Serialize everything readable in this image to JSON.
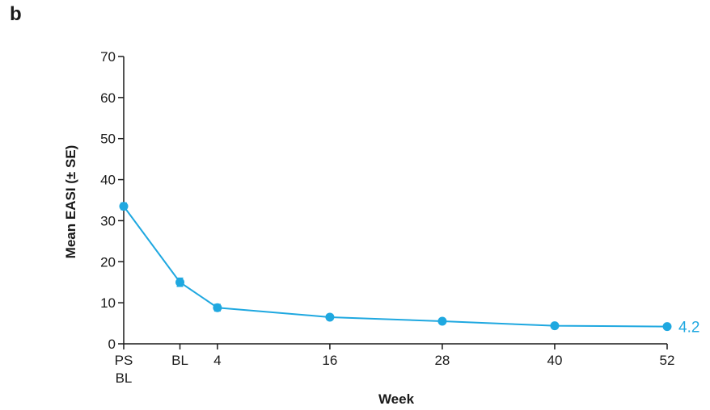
{
  "panel_label": "b",
  "colors": {
    "series": "#1fa8e0",
    "axis": "#1a1a1a"
  },
  "chart_data": {
    "type": "line",
    "title": "",
    "xlabel": "Week",
    "ylabel": "Mean EASI (± SE)",
    "ylim": [
      0,
      70
    ],
    "yticks": [
      0,
      10,
      20,
      30,
      40,
      50,
      60,
      70
    ],
    "categories": [
      {
        "label": [
          "PS",
          "BL"
        ],
        "week": -6
      },
      {
        "label": [
          "BL"
        ],
        "week": 0
      },
      {
        "label": [
          "4"
        ],
        "week": 4
      },
      {
        "label": [
          "16"
        ],
        "week": 16
      },
      {
        "label": [
          "28"
        ],
        "week": 28
      },
      {
        "label": [
          "40"
        ],
        "week": 40
      },
      {
        "label": [
          "52"
        ],
        "week": 52
      }
    ],
    "series": [
      {
        "values": [
          33.5,
          15.0,
          8.8,
          6.5,
          5.5,
          4.4,
          4.2
        ],
        "se": [
          0.8,
          1.0,
          0.8,
          0.5,
          0.5,
          0.4,
          0.4
        ]
      }
    ],
    "annotations": [
      {
        "text": "4.2",
        "at_index": 6
      }
    ]
  }
}
